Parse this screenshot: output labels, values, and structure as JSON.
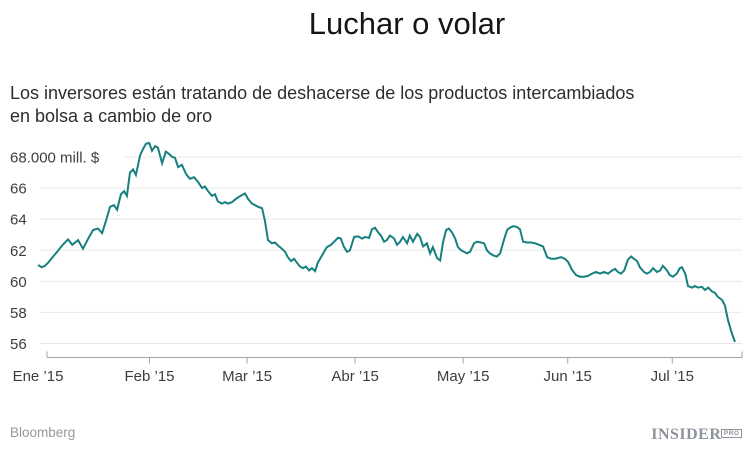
{
  "title": "Luchar o volar",
  "subtitle": {
    "line1": "Los inversores están tratando de deshacerse de los productos intercambiados",
    "line2": "en bolsa a cambio de oro"
  },
  "footer": {
    "source": "Bloomberg",
    "brand": "INSIDER",
    "brand_badge": "PRO"
  },
  "colors": {
    "line": "#17807E",
    "grid": "#e9e9e9",
    "axis": "#a3a3a3",
    "tick_text": "#3d3d3d"
  },
  "chart_data": {
    "type": "line",
    "title": "Luchar o volar",
    "ylabel": "mill. $",
    "ylim": [
      55.5,
      69.2
    ],
    "grid": "horizontal",
    "legend_position": "none",
    "start_date": "2014-12-31",
    "end_date": "2015-07-19",
    "y_ticks": [
      {
        "value": 68,
        "label": "68.000 mill. $"
      },
      {
        "value": 66,
        "label": "66"
      },
      {
        "value": 64,
        "label": "64"
      },
      {
        "value": 62,
        "label": "62"
      },
      {
        "value": 60,
        "label": "60"
      },
      {
        "value": 58,
        "label": "58"
      },
      {
        "value": 56,
        "label": "56"
      }
    ],
    "x_ticks": [
      {
        "day": 0,
        "label": "Ene ’15"
      },
      {
        "day": 32,
        "label": "Feb ’15"
      },
      {
        "day": 60,
        "label": "Mar ’15"
      },
      {
        "day": 91,
        "label": "Abr ’15"
      },
      {
        "day": 122,
        "label": "May ’15"
      },
      {
        "day": 152,
        "label": "Jun ’15"
      },
      {
        "day": 182,
        "label": "Jul ’15"
      }
    ],
    "series": [
      {
        "color": "#17807E",
        "points": [
          [
            0,
            61.05
          ],
          [
            1.1,
            60.9
          ],
          [
            2,
            61.0
          ],
          [
            2.9,
            61.2
          ],
          [
            4,
            61.5
          ],
          [
            5.5,
            61.9
          ],
          [
            6.9,
            62.3
          ],
          [
            8.6,
            62.7
          ],
          [
            9.8,
            62.35
          ],
          [
            11.5,
            62.65
          ],
          [
            12.9,
            62.1
          ],
          [
            14.3,
            62.7
          ],
          [
            15.8,
            63.3
          ],
          [
            17.2,
            63.4
          ],
          [
            18.4,
            63.1
          ],
          [
            19.5,
            63.9
          ],
          [
            20.7,
            64.8
          ],
          [
            21.8,
            64.9
          ],
          [
            22.7,
            64.6
          ],
          [
            23.8,
            65.6
          ],
          [
            24.7,
            65.8
          ],
          [
            25.5,
            65.5
          ],
          [
            26.4,
            67.0
          ],
          [
            27.3,
            67.2
          ],
          [
            28.1,
            66.85
          ],
          [
            29.3,
            68.1
          ],
          [
            30.1,
            68.5
          ],
          [
            31,
            68.85
          ],
          [
            31.9,
            68.9
          ],
          [
            32.7,
            68.4
          ],
          [
            33.6,
            68.7
          ],
          [
            34.4,
            68.6
          ],
          [
            35.6,
            67.6
          ],
          [
            36.7,
            68.35
          ],
          [
            37.6,
            68.2
          ],
          [
            38.5,
            68.0
          ],
          [
            39.3,
            67.95
          ],
          [
            40.2,
            67.35
          ],
          [
            41.3,
            67.5
          ],
          [
            42.5,
            66.9
          ],
          [
            43.6,
            66.6
          ],
          [
            44.8,
            66.7
          ],
          [
            45.9,
            66.4
          ],
          [
            47.1,
            66.0
          ],
          [
            47.9,
            66.1
          ],
          [
            48.8,
            65.8
          ],
          [
            49.9,
            65.5
          ],
          [
            50.8,
            65.6
          ],
          [
            51.6,
            65.15
          ],
          [
            52.8,
            65.0
          ],
          [
            53.7,
            65.1
          ],
          [
            54.5,
            65.0
          ],
          [
            55.7,
            65.1
          ],
          [
            56.5,
            65.25
          ],
          [
            57.4,
            65.4
          ],
          [
            58.5,
            65.55
          ],
          [
            59.4,
            65.65
          ],
          [
            60.3,
            65.3
          ],
          [
            61.4,
            65.0
          ],
          [
            62.3,
            64.9
          ],
          [
            63.1,
            64.8
          ],
          [
            64.3,
            64.7
          ],
          [
            65.1,
            63.9
          ],
          [
            66,
            62.65
          ],
          [
            67.1,
            62.45
          ],
          [
            68,
            62.5
          ],
          [
            68.9,
            62.3
          ],
          [
            70,
            62.1
          ],
          [
            70.9,
            61.9
          ],
          [
            71.7,
            61.55
          ],
          [
            72.6,
            61.3
          ],
          [
            73.5,
            61.45
          ],
          [
            74.3,
            61.2
          ],
          [
            75.2,
            60.95
          ],
          [
            76,
            60.85
          ],
          [
            76.9,
            60.95
          ],
          [
            77.8,
            60.7
          ],
          [
            78.6,
            60.85
          ],
          [
            79.5,
            60.65
          ],
          [
            80.3,
            61.2
          ],
          [
            81.2,
            61.55
          ],
          [
            82.1,
            61.9
          ],
          [
            82.9,
            62.2
          ],
          [
            84.1,
            62.35
          ],
          [
            85.2,
            62.6
          ],
          [
            86.1,
            62.8
          ],
          [
            86.9,
            62.75
          ],
          [
            87.8,
            62.2
          ],
          [
            88.7,
            61.9
          ],
          [
            89.5,
            62.0
          ],
          [
            90.7,
            62.85
          ],
          [
            91.8,
            62.9
          ],
          [
            93,
            62.75
          ],
          [
            93.8,
            62.85
          ],
          [
            95,
            62.8
          ],
          [
            95.8,
            63.35
          ],
          [
            96.7,
            63.45
          ],
          [
            97.6,
            63.15
          ],
          [
            98.4,
            62.95
          ],
          [
            99.3,
            62.55
          ],
          [
            100.1,
            62.65
          ],
          [
            101,
            62.95
          ],
          [
            102.2,
            62.75
          ],
          [
            103,
            62.35
          ],
          [
            103.9,
            62.55
          ],
          [
            104.7,
            62.85
          ],
          [
            105.9,
            62.45
          ],
          [
            106.7,
            62.95
          ],
          [
            107.6,
            62.55
          ],
          [
            108.8,
            63.05
          ],
          [
            109.6,
            62.85
          ],
          [
            110.5,
            62.25
          ],
          [
            111.6,
            62.45
          ],
          [
            112.5,
            61.8
          ],
          [
            113.3,
            62.2
          ],
          [
            114.5,
            61.5
          ],
          [
            115.4,
            61.35
          ],
          [
            116.2,
            62.5
          ],
          [
            117.1,
            63.3
          ],
          [
            117.9,
            63.4
          ],
          [
            118.8,
            63.15
          ],
          [
            119.7,
            62.75
          ],
          [
            120.5,
            62.2
          ],
          [
            121.4,
            62.0
          ],
          [
            122.2,
            61.9
          ],
          [
            123.1,
            61.8
          ],
          [
            124,
            61.9
          ],
          [
            125.1,
            62.45
          ],
          [
            126,
            62.55
          ],
          [
            127.1,
            62.5
          ],
          [
            128,
            62.45
          ],
          [
            128.8,
            62.0
          ],
          [
            129.7,
            61.8
          ],
          [
            130.8,
            61.65
          ],
          [
            131.7,
            61.6
          ],
          [
            132.6,
            61.8
          ],
          [
            133.7,
            62.65
          ],
          [
            134.6,
            63.3
          ],
          [
            135.4,
            63.45
          ],
          [
            136.3,
            63.55
          ],
          [
            137.4,
            63.5
          ],
          [
            138.3,
            63.35
          ],
          [
            139.2,
            62.55
          ],
          [
            140.3,
            62.5
          ],
          [
            141.5,
            62.5
          ],
          [
            142.6,
            62.45
          ],
          [
            143.8,
            62.35
          ],
          [
            144.9,
            62.25
          ],
          [
            146.1,
            61.55
          ],
          [
            147.2,
            61.45
          ],
          [
            148.4,
            61.45
          ],
          [
            149.2,
            61.5
          ],
          [
            150.1,
            61.55
          ],
          [
            151.2,
            61.45
          ],
          [
            152.1,
            61.25
          ],
          [
            153.2,
            60.75
          ],
          [
            154.4,
            60.4
          ],
          [
            155.5,
            60.3
          ],
          [
            156.7,
            60.3
          ],
          [
            157.8,
            60.35
          ],
          [
            159,
            60.5
          ],
          [
            160.1,
            60.6
          ],
          [
            161.3,
            60.5
          ],
          [
            162.4,
            60.6
          ],
          [
            163.6,
            60.5
          ],
          [
            164.7,
            60.7
          ],
          [
            165.6,
            60.8
          ],
          [
            166.4,
            60.6
          ],
          [
            167.3,
            60.5
          ],
          [
            168.2,
            60.7
          ],
          [
            169.3,
            61.4
          ],
          [
            170.2,
            61.6
          ],
          [
            171,
            61.45
          ],
          [
            171.9,
            61.3
          ],
          [
            172.7,
            60.9
          ],
          [
            173.9,
            60.6
          ],
          [
            174.7,
            60.5
          ],
          [
            175.6,
            60.6
          ],
          [
            176.5,
            60.85
          ],
          [
            177.6,
            60.6
          ],
          [
            178.5,
            60.7
          ],
          [
            179.3,
            61.0
          ],
          [
            180.5,
            60.7
          ],
          [
            181.3,
            60.4
          ],
          [
            182.2,
            60.3
          ],
          [
            183.3,
            60.5
          ],
          [
            184.2,
            60.85
          ],
          [
            184.8,
            60.9
          ],
          [
            185.7,
            60.5
          ],
          [
            186.5,
            59.7
          ],
          [
            187.7,
            59.6
          ],
          [
            188.5,
            59.7
          ],
          [
            189.4,
            59.6
          ],
          [
            190.5,
            59.65
          ],
          [
            191.4,
            59.45
          ],
          [
            192.3,
            59.6
          ],
          [
            193.4,
            59.35
          ],
          [
            194.3,
            59.25
          ],
          [
            195.1,
            59.0
          ],
          [
            196.3,
            58.8
          ],
          [
            197.1,
            58.45
          ],
          [
            198,
            57.5
          ],
          [
            199.1,
            56.65
          ],
          [
            200,
            56.1
          ]
        ]
      }
    ]
  }
}
